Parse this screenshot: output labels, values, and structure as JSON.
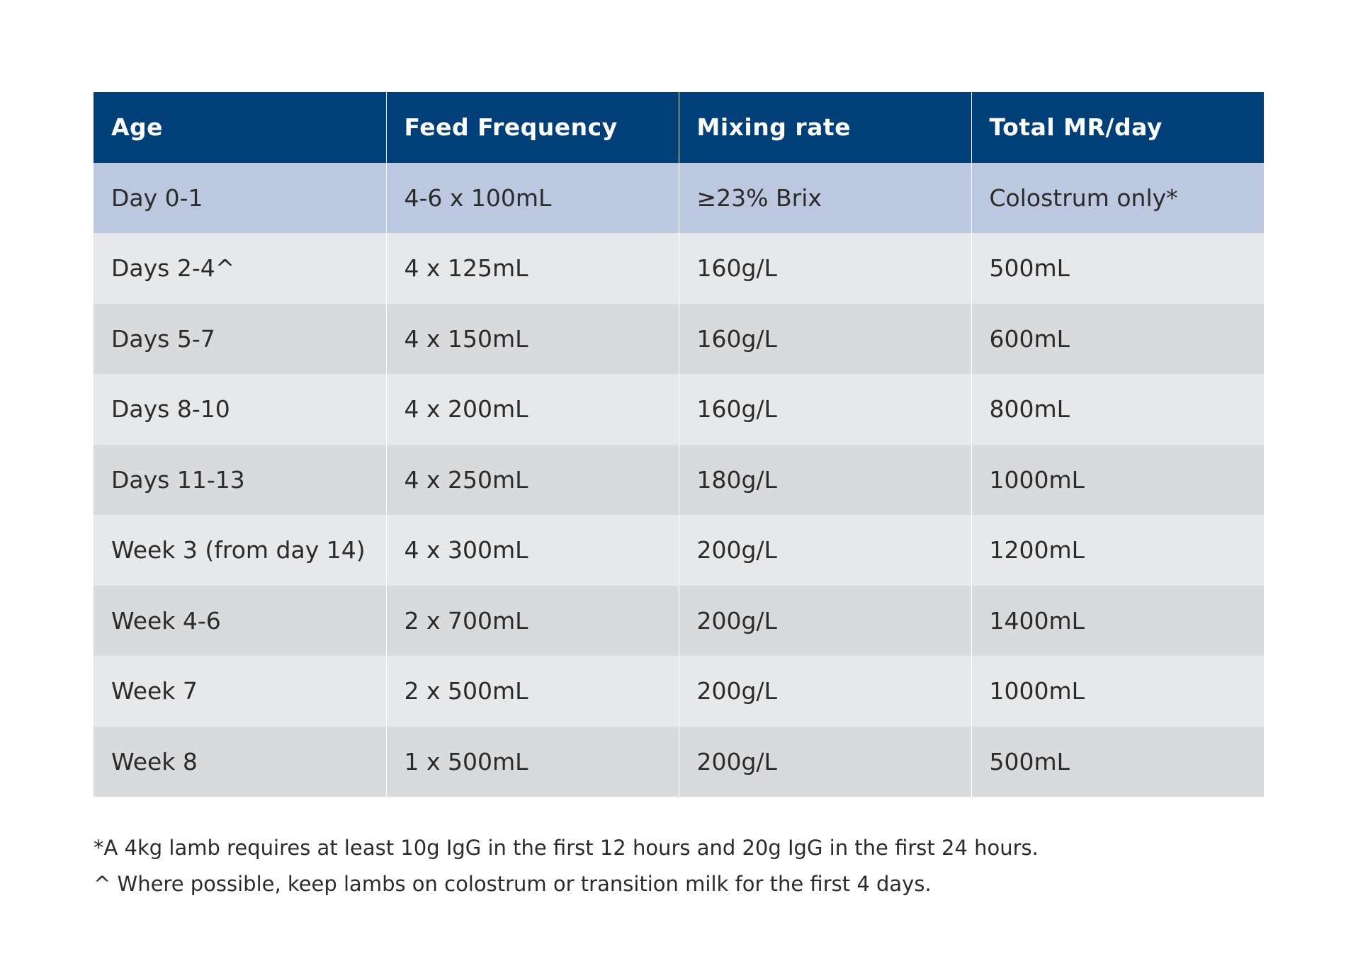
{
  "table": {
    "headers": [
      "Age",
      "Feed Frequency",
      "Mixing rate",
      "Total MR/day"
    ],
    "rows": [
      [
        "Day 0-1",
        "4-6 x 100mL",
        "≥23% Brix",
        "Colostrum only*"
      ],
      [
        "Days 2-4^",
        "4 x 125mL",
        "160g/L",
        "500mL"
      ],
      [
        "Days 5-7",
        "4 x 150mL",
        "160g/L",
        "600mL"
      ],
      [
        "Days 8-10",
        "4 x 200mL",
        "160g/L",
        "800mL"
      ],
      [
        "Days 11-13",
        "4 x 250mL",
        "180g/L",
        "1000mL"
      ],
      [
        "Week 3 (from day 14)",
        "4 x 300mL",
        "200g/L",
        "1200mL"
      ],
      [
        "Week 4-6",
        "2 x 700mL",
        "200g/L",
        "1400mL"
      ],
      [
        "Week 7",
        "2 x 500mL",
        "200g/L",
        "1000mL"
      ],
      [
        "Week 8",
        "1 x 500mL",
        "200g/L",
        "500mL"
      ]
    ]
  },
  "footnotes": [
    "*A 4kg lamb requires at least 10g IgG in the first 12 hours and 20g IgG in the first 24 hours.",
    "^ Where possible, keep lambs on colostrum or transition milk for the first 4 days."
  ],
  "colors": {
    "header_bg": "#003f78",
    "highlight_row_bg": "#bcc8df",
    "light_row_bg": "#e7e8ea",
    "dark_row_bg": "#d9dadc"
  }
}
